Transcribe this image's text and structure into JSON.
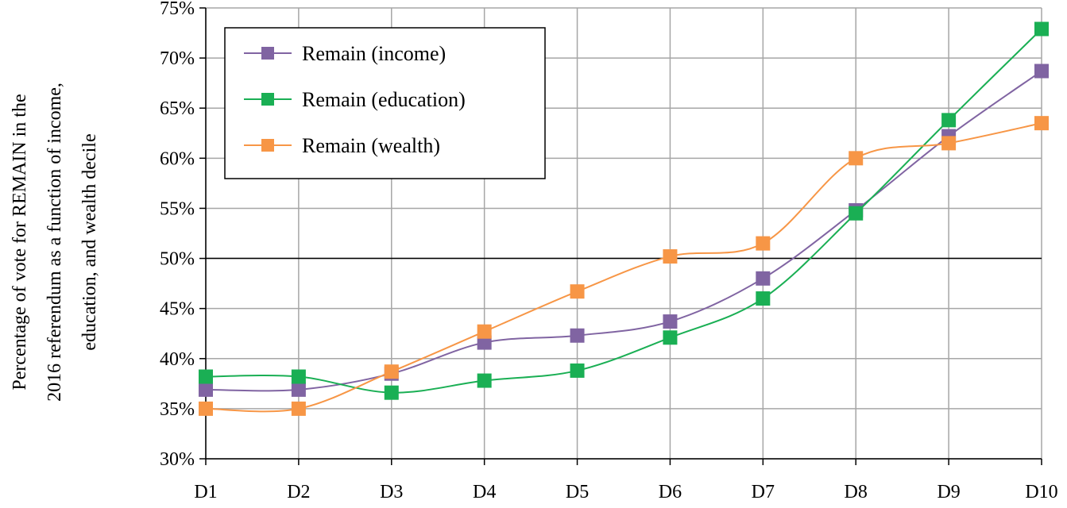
{
  "chart_data": {
    "type": "line",
    "categories": [
      "D1",
      "D2",
      "D3",
      "D4",
      "D5",
      "D6",
      "D7",
      "D8",
      "D9",
      "D10"
    ],
    "series": [
      {
        "name": "Remain (income)",
        "color": "#8064A2",
        "values": [
          36.9,
          36.9,
          38.5,
          41.6,
          42.3,
          43.7,
          48.0,
          54.8,
          62.2,
          68.7
        ]
      },
      {
        "name": "Remain (education)",
        "color": "#1AAF54",
        "values": [
          38.2,
          38.2,
          36.6,
          37.8,
          38.8,
          42.1,
          46.0,
          54.5,
          63.8,
          72.9
        ]
      },
      {
        "name": "Remain (wealth)",
        "color": "#F79646",
        "values": [
          35.0,
          35.0,
          38.7,
          42.7,
          46.7,
          50.2,
          51.5,
          60.0,
          61.5,
          63.5
        ]
      }
    ],
    "ylabel_lines": [
      "Percentage of vote for REMAIN in the",
      "2016 referendum as a function of income,",
      "education, and wealth decile"
    ],
    "xlabel": "",
    "ylim": [
      30,
      75
    ],
    "ytick_labels": [
      "30%",
      "35%",
      "40%",
      "45%",
      "50%",
      "55%",
      "60%",
      "65%",
      "70%",
      "75%"
    ],
    "grid": true,
    "reference_line": 50,
    "legend_position": "top-left"
  }
}
